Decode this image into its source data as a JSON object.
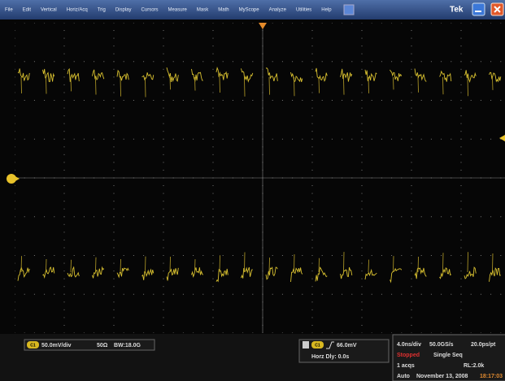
{
  "menu": {
    "items": [
      "File",
      "Edit",
      "Vertical",
      "Horiz/Acq",
      "Trig",
      "Display",
      "Cursors",
      "Measure",
      "Mask",
      "Math",
      "MyScope",
      "Analyze",
      "Utilities",
      "Help"
    ],
    "brand": "Tek"
  },
  "channel": {
    "badge": "C1",
    "scale": "50.0mV/div",
    "impedance": "50Ω",
    "bandwidth": "BW:18.0G"
  },
  "trigger": {
    "source": "C1",
    "level": "66.0mV",
    "horz_delay": "Horz Dly:  0.0s"
  },
  "acquisition": {
    "timebase": "4.0ns/div",
    "sample_rate": "50.0GS/s",
    "resolution": "20.0ps/pt",
    "state": "Stopped",
    "mode": "Single Seq",
    "count": "1 acqs",
    "record_length": "RL:2.0k",
    "trigger_mode": "Auto",
    "date": "November 13, 2008",
    "time": "18:17:03"
  }
}
